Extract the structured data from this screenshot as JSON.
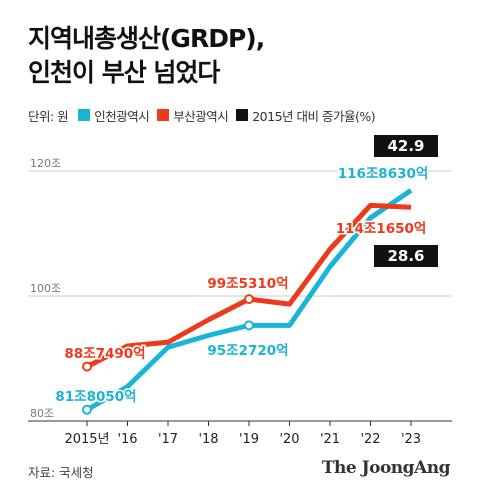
{
  "title": {
    "line1": "지역내총생산(GRDP),",
    "line2": "인천이 부산 넘었다"
  },
  "legend": {
    "unit": "단위: 원",
    "incheon": "인천광역시",
    "busan": "부산광역시",
    "growth": "2015년 대비 증가율(%)"
  },
  "colors": {
    "incheon": "#1ab4d8",
    "busan": "#ee3a1b",
    "growth_box": "#111111",
    "grid": "#cccccc"
  },
  "chart_data": {
    "type": "line",
    "categories": [
      "2015년",
      "'16",
      "'17",
      "'18",
      "'19",
      "'20",
      "'21",
      "'22",
      "'23"
    ],
    "series": [
      {
        "name": "인천광역시",
        "values": [
          81.8,
          85.5,
          91.8,
          93.7,
          95.3,
          95.3,
          104.7,
          112.5,
          116.9
        ]
      },
      {
        "name": "부산광역시",
        "values": [
          88.7,
          92.0,
          92.6,
          96.2,
          99.5,
          98.7,
          107.5,
          114.5,
          114.2
        ]
      }
    ],
    "y_ticks": [
      {
        "value": 120,
        "label": "120조"
      },
      {
        "value": 100,
        "label": "100조"
      },
      {
        "value": 80,
        "label": "80조"
      }
    ],
    "ylim": [
      80,
      125
    ],
    "grid": true,
    "annotations": {
      "incheon_2015": "81조8050억",
      "incheon_2019": "95조2720억",
      "incheon_2023": "116조8630억",
      "busan_2015": "88조7490억",
      "busan_2019": "99조5310억",
      "busan_2023": "114조1650억"
    },
    "growth": {
      "incheon": "42.9",
      "busan": "28.6"
    }
  },
  "footer": {
    "source": "자료: 국세청",
    "brand": "The JoongAng"
  }
}
